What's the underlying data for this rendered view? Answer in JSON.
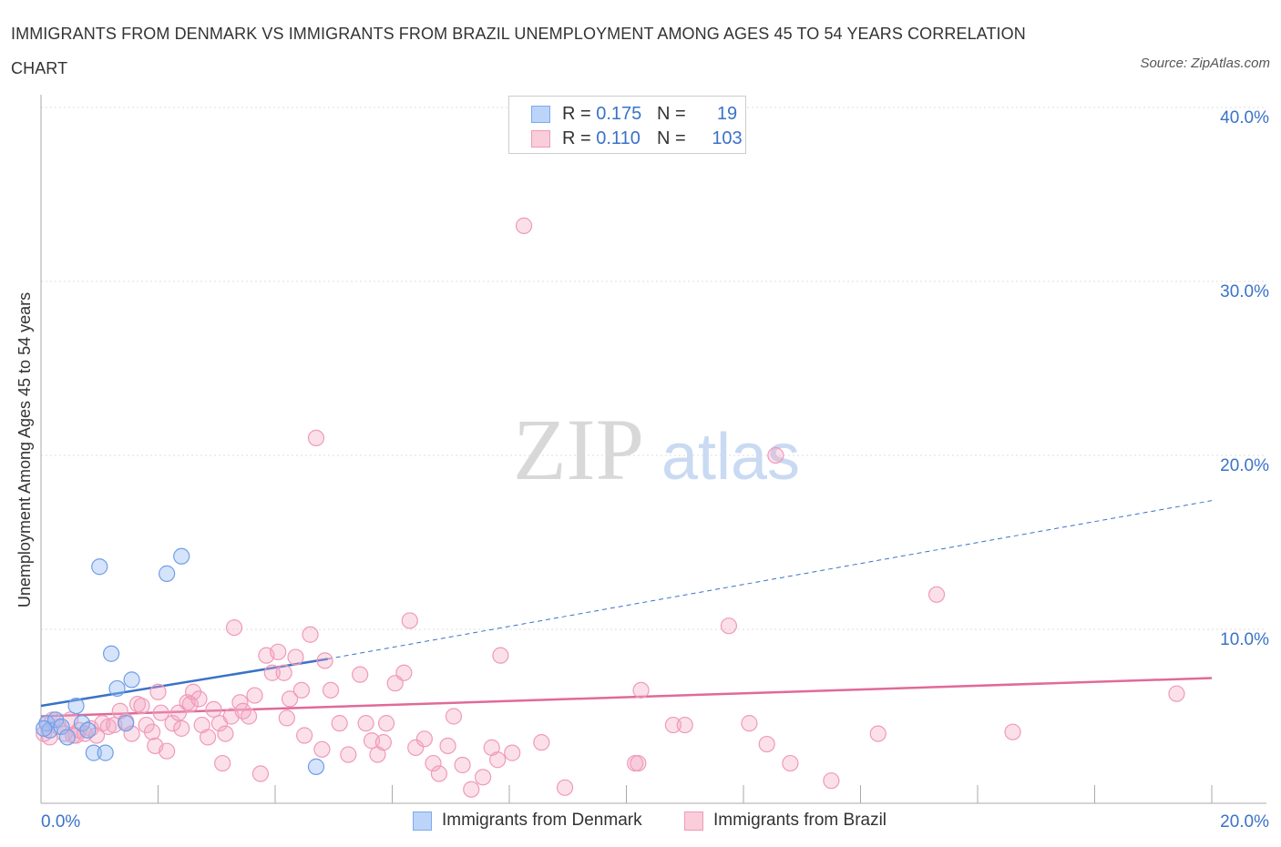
{
  "header": {
    "title": "IMMIGRANTS FROM DENMARK VS IMMIGRANTS FROM BRAZIL UNEMPLOYMENT AMONG AGES 45 TO 54 YEARS CORRELATION CHART",
    "source": "Source: ZipAtlas.com"
  },
  "watermark": {
    "zip": "ZIP",
    "atlas": "atlas"
  },
  "legend": {
    "denmark": {
      "r_label": "R =",
      "r_value": "0.175",
      "n_label": "N =",
      "n_value": "19"
    },
    "brazil": {
      "r_label": "R =",
      "r_value": "0.110",
      "n_label": "N =",
      "n_value": "103"
    }
  },
  "chart_data": {
    "type": "scatter",
    "title": "IMMIGRANTS FROM DENMARK VS IMMIGRANTS FROM BRAZIL UNEMPLOYMENT AMONG AGES 45 TO 54 YEARS CORRELATION CHART",
    "xlabel": "",
    "ylabel": "Unemployment Among Ages 45 to 54 years",
    "xlim": [
      0,
      20
    ],
    "ylim": [
      0,
      40
    ],
    "x_tick_labels": [
      "0.0%",
      "20.0%"
    ],
    "y_ticks": [
      10,
      20,
      30,
      40
    ],
    "y_tick_labels": [
      "10.0%",
      "20.0%",
      "30.0%",
      "40.0%"
    ],
    "grid": true,
    "legend_position": "top-center",
    "colors": {
      "denmark": "#7aaaf0",
      "brazil": "#f09ab8",
      "denmark_line": "#3a72c8",
      "brazil_line": "#e06a98"
    },
    "series": [
      {
        "name": "Immigrants from Denmark",
        "R": 0.175,
        "N": 19,
        "trend": {
          "x0": 0,
          "y0": 5.6,
          "x1": 4.9,
          "y1": 8.3,
          "dash_to_x": 20,
          "dash_to_y": 17.4
        },
        "points": [
          [
            0.1,
            4.6
          ],
          [
            0.15,
            4.2
          ],
          [
            0.25,
            4.8
          ],
          [
            0.35,
            4.4
          ],
          [
            0.45,
            3.8
          ],
          [
            0.6,
            5.6
          ],
          [
            0.7,
            4.6
          ],
          [
            0.8,
            4.2
          ],
          [
            0.9,
            2.9
          ],
          [
            1.0,
            13.6
          ],
          [
            1.1,
            2.9
          ],
          [
            1.2,
            8.6
          ],
          [
            1.3,
            6.6
          ],
          [
            1.45,
            4.6
          ],
          [
            1.55,
            7.1
          ],
          [
            2.15,
            13.2
          ],
          [
            2.4,
            14.2
          ],
          [
            4.7,
            2.1
          ],
          [
            0.05,
            4.3
          ]
        ]
      },
      {
        "name": "Immigrants from Brazil",
        "R": 0.11,
        "N": 103,
        "trend": {
          "x0": 0,
          "y0": 5.0,
          "x1": 20,
          "y1": 7.2
        },
        "points": [
          [
            0.05,
            4.0
          ],
          [
            0.1,
            4.6
          ],
          [
            0.15,
            3.8
          ],
          [
            0.2,
            4.8
          ],
          [
            0.3,
            4.4
          ],
          [
            0.4,
            4.0
          ],
          [
            0.5,
            4.8
          ],
          [
            0.55,
            3.9
          ],
          [
            0.65,
            4.2
          ],
          [
            0.75,
            4.0
          ],
          [
            0.85,
            4.3
          ],
          [
            0.95,
            3.9
          ],
          [
            1.05,
            4.6
          ],
          [
            1.15,
            4.4
          ],
          [
            1.25,
            4.5
          ],
          [
            1.35,
            5.3
          ],
          [
            1.45,
            4.7
          ],
          [
            1.55,
            4.0
          ],
          [
            1.65,
            5.7
          ],
          [
            1.72,
            5.6
          ],
          [
            1.8,
            4.5
          ],
          [
            1.9,
            4.1
          ],
          [
            1.95,
            3.3
          ],
          [
            2.0,
            6.4
          ],
          [
            2.05,
            5.2
          ],
          [
            2.15,
            3.0
          ],
          [
            2.25,
            4.6
          ],
          [
            2.35,
            5.2
          ],
          [
            2.4,
            4.3
          ],
          [
            2.5,
            5.8
          ],
          [
            2.55,
            5.7
          ],
          [
            2.6,
            6.4
          ],
          [
            2.7,
            6.0
          ],
          [
            2.75,
            4.5
          ],
          [
            2.85,
            3.8
          ],
          [
            2.95,
            5.4
          ],
          [
            3.05,
            4.6
          ],
          [
            3.1,
            2.3
          ],
          [
            3.15,
            4.0
          ],
          [
            3.25,
            5.0
          ],
          [
            3.3,
            10.1
          ],
          [
            3.4,
            5.8
          ],
          [
            3.45,
            5.3
          ],
          [
            3.55,
            5.0
          ],
          [
            3.65,
            6.2
          ],
          [
            3.75,
            1.7
          ],
          [
            3.85,
            8.5
          ],
          [
            3.95,
            7.5
          ],
          [
            4.05,
            8.7
          ],
          [
            4.15,
            7.5
          ],
          [
            4.25,
            6.0
          ],
          [
            4.35,
            8.4
          ],
          [
            4.45,
            6.5
          ],
          [
            4.5,
            3.9
          ],
          [
            4.6,
            9.7
          ],
          [
            4.7,
            21.0
          ],
          [
            4.8,
            3.1
          ],
          [
            4.85,
            8.2
          ],
          [
            4.95,
            6.5
          ],
          [
            5.1,
            4.6
          ],
          [
            5.25,
            2.8
          ],
          [
            5.45,
            7.4
          ],
          [
            5.55,
            4.6
          ],
          [
            5.65,
            3.6
          ],
          [
            5.75,
            2.8
          ],
          [
            5.85,
            3.5
          ],
          [
            6.05,
            6.9
          ],
          [
            6.2,
            7.5
          ],
          [
            6.3,
            10.5
          ],
          [
            6.4,
            3.2
          ],
          [
            6.55,
            3.7
          ],
          [
            6.7,
            2.3
          ],
          [
            6.8,
            1.7
          ],
          [
            6.95,
            3.3
          ],
          [
            7.05,
            5.0
          ],
          [
            7.2,
            2.2
          ],
          [
            7.35,
            0.8
          ],
          [
            7.55,
            1.5
          ],
          [
            7.7,
            3.2
          ],
          [
            7.8,
            2.5
          ],
          [
            7.85,
            8.5
          ],
          [
            8.05,
            2.9
          ],
          [
            8.25,
            33.2
          ],
          [
            8.55,
            3.5
          ],
          [
            8.95,
            0.9
          ],
          [
            10.15,
            2.3
          ],
          [
            10.2,
            2.3
          ],
          [
            10.25,
            6.5
          ],
          [
            10.8,
            4.5
          ],
          [
            11.0,
            4.5
          ],
          [
            11.75,
            10.2
          ],
          [
            12.1,
            4.6
          ],
          [
            12.4,
            3.4
          ],
          [
            12.55,
            20.0
          ],
          [
            12.8,
            2.3
          ],
          [
            13.5,
            1.3
          ],
          [
            14.3,
            4.0
          ],
          [
            15.3,
            12.0
          ],
          [
            16.6,
            4.1
          ],
          [
            19.4,
            6.3
          ],
          [
            4.2,
            4.9
          ],
          [
            0.6,
            3.9
          ],
          [
            5.9,
            4.6
          ]
        ]
      }
    ]
  },
  "bottom_legend": {
    "denmark_label": "Immigrants from Denmark",
    "brazil_label": "Immigrants from Brazil"
  }
}
